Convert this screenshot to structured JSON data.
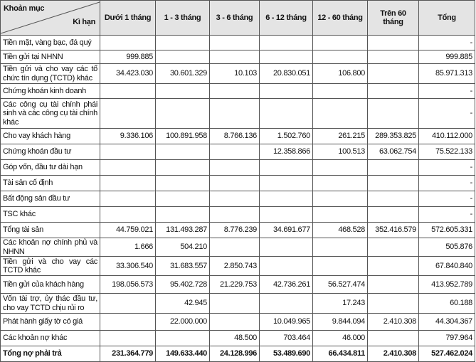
{
  "header": {
    "corner_top": "Khoản mục",
    "corner_bottom": "Kì hạn",
    "columns": [
      "Dưới 1 tháng",
      "1 - 3 tháng",
      "3 - 6 tháng",
      "6 - 12 tháng",
      "12 - 60 tháng",
      "Trên 60 tháng",
      "Tổng"
    ]
  },
  "rows": [
    {
      "label": "Tiền mặt, vàng bạc, đá quý",
      "values": [
        "",
        "",
        "",
        "",
        "",
        "",
        "-"
      ]
    },
    {
      "label": "Tiền gửi tại NHNN",
      "values": [
        "999.885",
        "",
        "",
        "",
        "",
        "",
        "999.885"
      ]
    },
    {
      "label": "Tiền gửi và cho vay các tổ chức tín dụng (TCTD) khác",
      "values": [
        "34.423.030",
        "30.601.329",
        "10.103",
        "20.830.051",
        "106.800",
        "",
        "85.971.313"
      ]
    },
    {
      "label": "Chứng khoán kinh doanh",
      "values": [
        "",
        "",
        "",
        "",
        "",
        "",
        "-"
      ]
    },
    {
      "label": "Các công cụ tài chính phái sinh và các công cụ tài chính khác",
      "values": [
        "",
        "",
        "",
        "",
        "",
        "",
        "-"
      ]
    },
    {
      "label": "Cho vay khách hàng",
      "values": [
        "9.336.106",
        "100.891.958",
        "8.766.136",
        "1.502.760",
        "261.215",
        "289.353.825",
        "410.112.000"
      ]
    },
    {
      "label": "Chứng khoán đầu tư",
      "values": [
        "",
        "",
        "",
        "12.358.866",
        "100.513",
        "63.062.754",
        "75.522.133"
      ]
    },
    {
      "label": "Góp vốn, đầu tư dài hạn",
      "values": [
        "",
        "",
        "",
        "",
        "",
        "",
        "-"
      ]
    },
    {
      "label": "Tài sản cố định",
      "values": [
        "",
        "",
        "",
        "",
        "",
        "",
        "-"
      ]
    },
    {
      "label": "Bất động sản đầu tư",
      "values": [
        "",
        "",
        "",
        "",
        "",
        "",
        "-"
      ]
    },
    {
      "label": "TSC khác",
      "values": [
        "",
        "",
        "",
        "",
        "",
        "",
        "-"
      ]
    },
    {
      "label": "Tổng tài sản",
      "values": [
        "44.759.021",
        "131.493.287",
        "8.776.239",
        "34.691.677",
        "468.528",
        "352.416.579",
        "572.605.331"
      ]
    },
    {
      "label": "Các khoản nợ chính phủ và NHNN",
      "values": [
        "1.666",
        "504.210",
        "",
        "",
        "",
        "",
        "505.876"
      ]
    },
    {
      "label": "Tiền gửi và cho vay các TCTD khác",
      "values": [
        "33.306.540",
        "31.683.557",
        "2.850.743",
        "",
        "",
        "",
        "67.840.840"
      ]
    },
    {
      "label": "Tiền gửi của khách hàng",
      "values": [
        "198.056.573",
        "95.402.728",
        "21.229.753",
        "42.736.261",
        "56.527.474",
        "",
        "413.952.789"
      ]
    },
    {
      "label": "Vốn tài trợ, ủy thác đầu tư, cho vay TCTD chịu rủi ro",
      "values": [
        "",
        "42.945",
        "",
        "",
        "17.243",
        "",
        "60.188"
      ]
    },
    {
      "label": "Phát hành giấy tờ có giá",
      "values": [
        "",
        "22.000.000",
        "",
        "10.049.965",
        "9.844.094",
        "2.410.308",
        "44.304.367"
      ]
    },
    {
      "label": "Các khoản nợ khác",
      "values": [
        "",
        "",
        "48.500",
        "703.464",
        "46.000",
        "",
        "797.964"
      ]
    },
    {
      "label": "Tổng nợ phải trả",
      "values": [
        "231.364.779",
        "149.633.440",
        "24.128.996",
        "53.489.690",
        "66.434.811",
        "2.410.308",
        "527.462.024"
      ],
      "bold": true
    }
  ]
}
